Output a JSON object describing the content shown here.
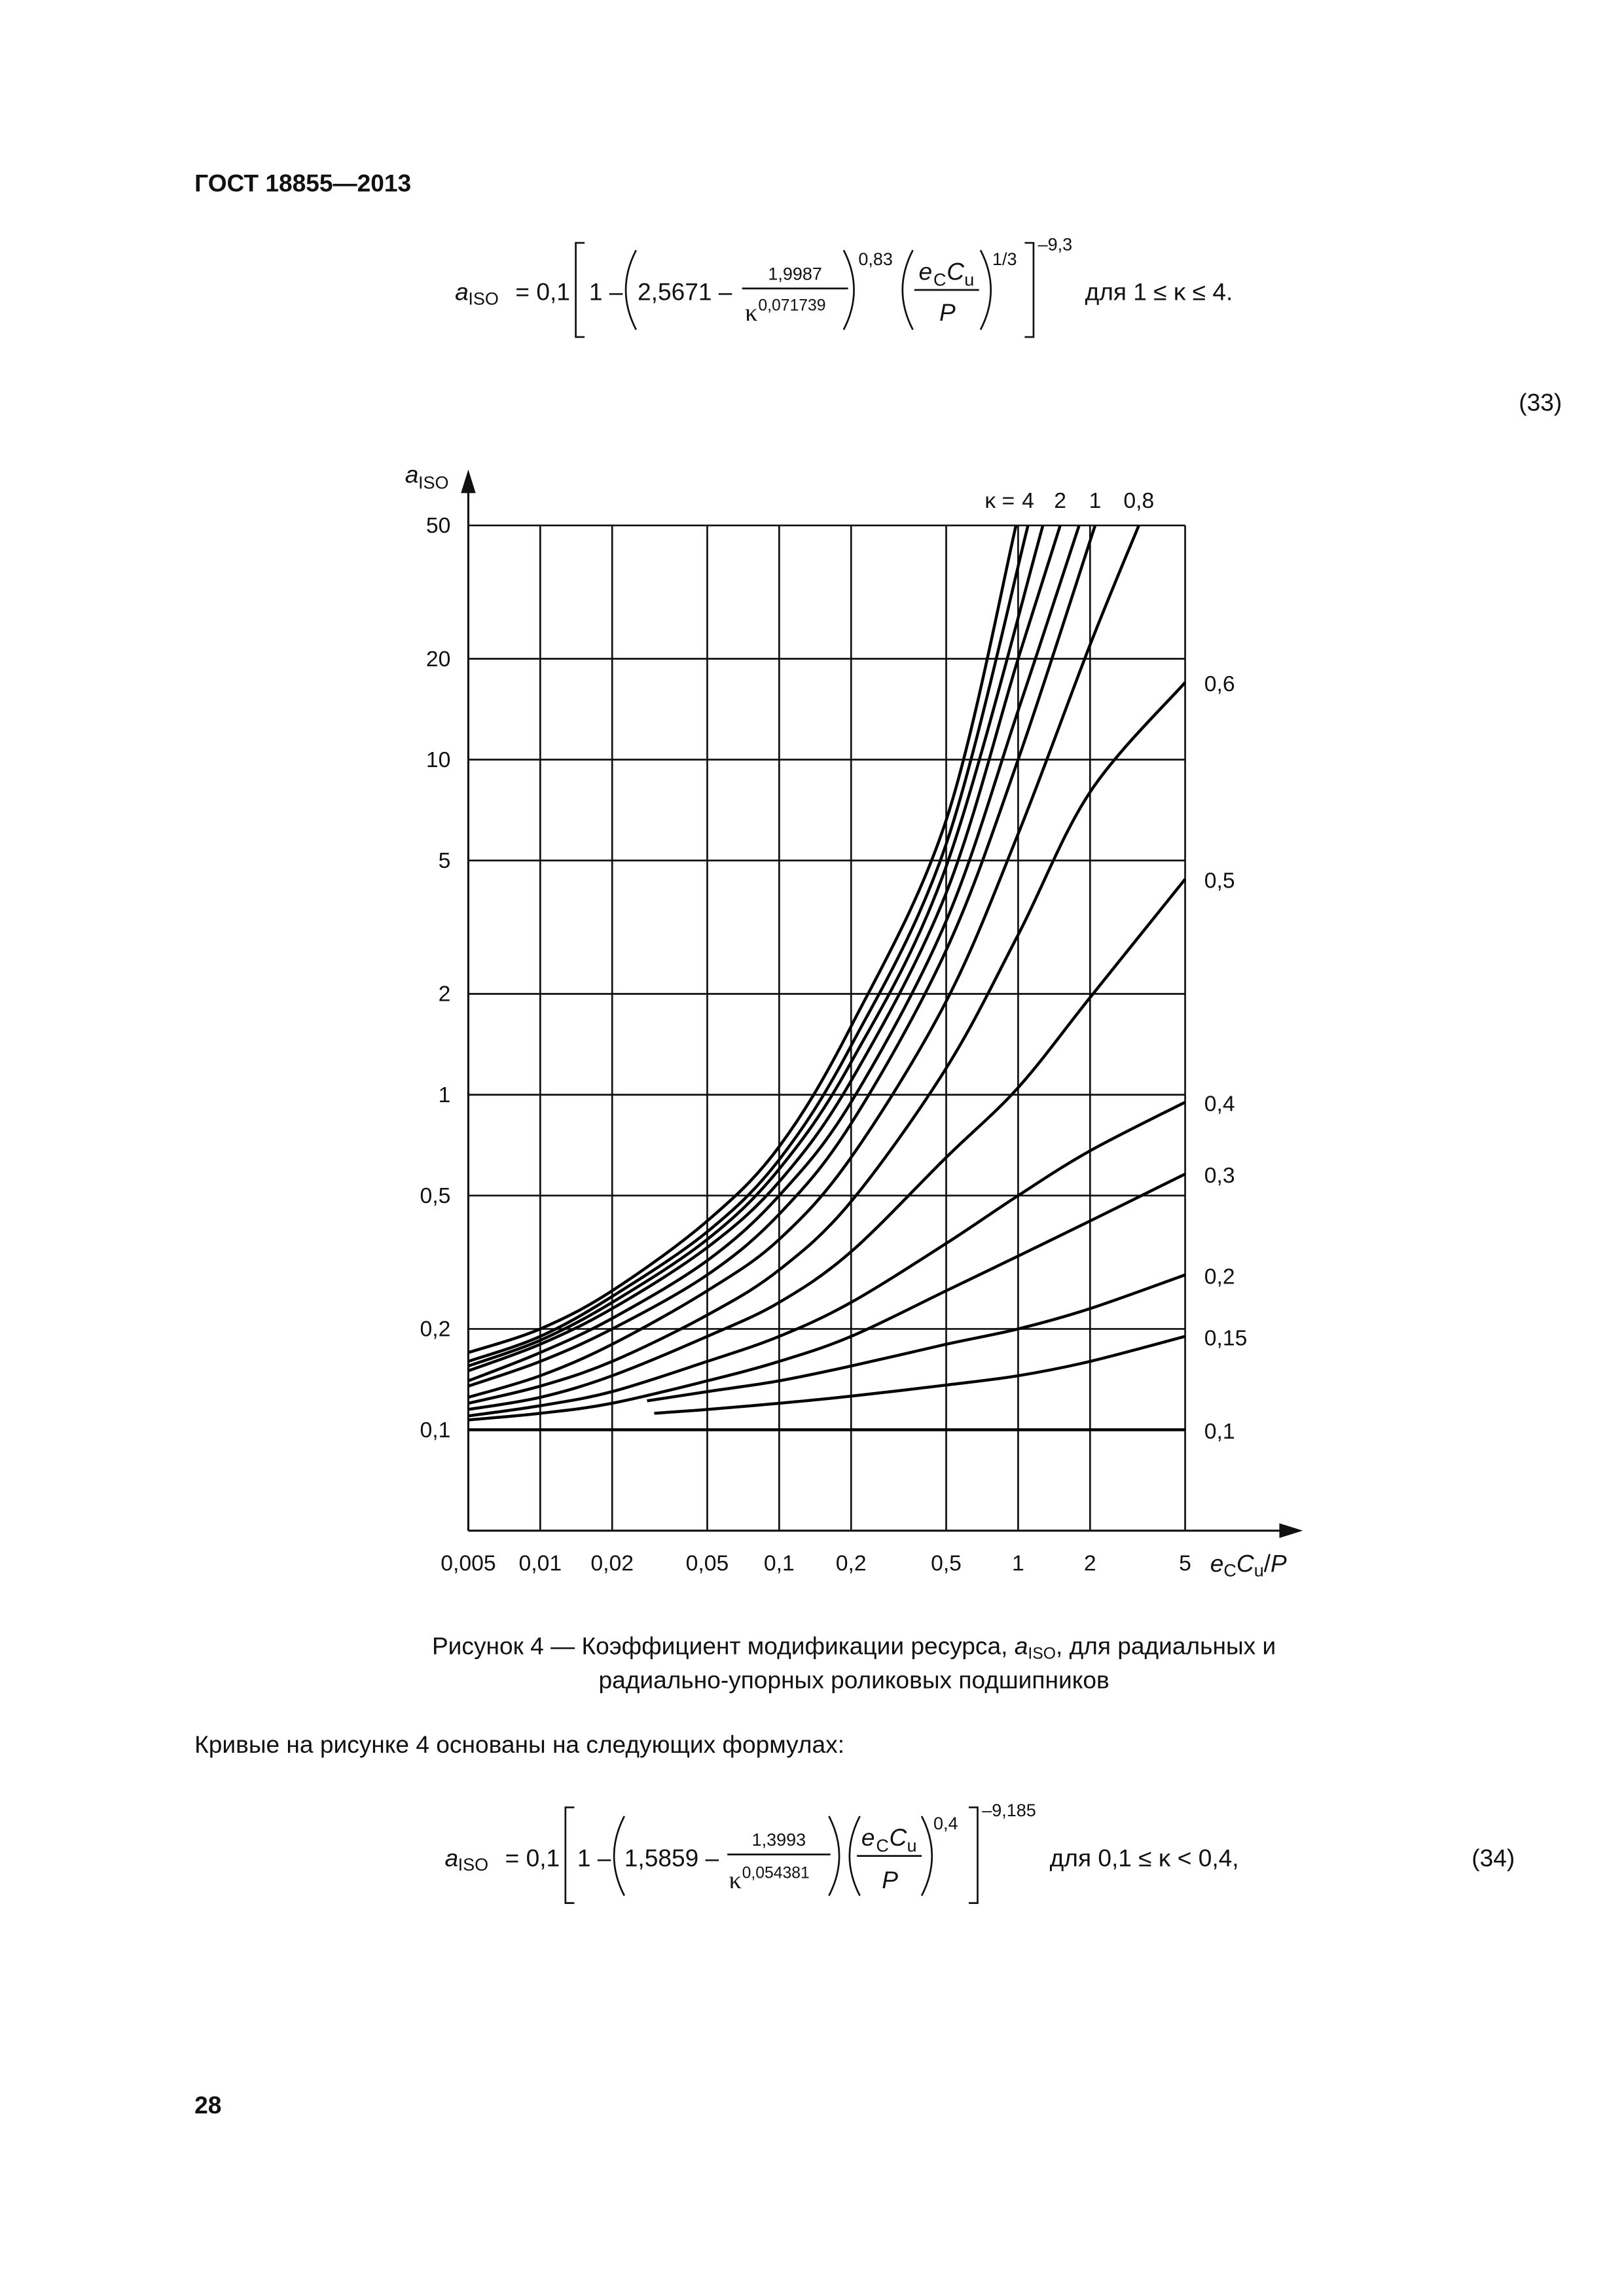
{
  "header": "ГОСТ 18855—2013",
  "formula_33": {
    "a": "a",
    "iso": "ISO",
    "eq": "= 0,1",
    "one": "1 –",
    "c1": "2,5671 –",
    "num": "1,9987",
    "kappa": "κ",
    "kexp": "0,071739",
    "exp1": "0,83",
    "e": "e",
    "e_sub": "C",
    "C": "C",
    "C_sub": "u",
    "P": "P",
    "exp2": "1/3",
    "exp3": "–9,3",
    "cond": "для  1 ≤ κ ≤ 4.",
    "number": "(33)"
  },
  "chart_data": {
    "type": "line",
    "ylabel": {
      "a": "a",
      "sub": "ISO"
    },
    "xlabel": {
      "e": "e",
      "e_sub": "C",
      "C": "C",
      "C_sub": "u",
      "slash": "/",
      "P": "P"
    },
    "kappa_label": "κ =",
    "xlog": true,
    "ylog": true,
    "grid": true,
    "xlim": [
      0.005,
      5
    ],
    "ylim": [
      0.05,
      50
    ],
    "xticks": [
      {
        "value": 0.005,
        "label": "0,005"
      },
      {
        "value": 0.01,
        "label": "0,01"
      },
      {
        "value": 0.02,
        "label": "0,02"
      },
      {
        "value": 0.05,
        "label": "0,05"
      },
      {
        "value": 0.1,
        "label": "0,1"
      },
      {
        "value": 0.2,
        "label": "0,2"
      },
      {
        "value": 0.5,
        "label": "0,5"
      },
      1,
      2,
      5
    ],
    "yticks": [
      {
        "value": 0.1,
        "label": "0,1"
      },
      {
        "value": 0.2,
        "label": "0,2"
      },
      {
        "value": 0.5,
        "label": "0,5"
      },
      1,
      2,
      5,
      10,
      20,
      50
    ],
    "series": [
      {
        "color": "#000000",
        "x": [
          0.005,
          0.01,
          0.02,
          0.05,
          0.1,
          0.2,
          0.5,
          0.98
        ],
        "values": [
          0.17,
          0.2,
          0.26,
          0.42,
          0.7,
          1.6,
          6.6,
          50
        ]
      },
      {
        "name": "4",
        "color": "#000000",
        "x": [
          0.005,
          0.01,
          0.02,
          0.05,
          0.1,
          0.2,
          0.5,
          1.1
        ],
        "values": [
          0.16,
          0.19,
          0.25,
          0.39,
          0.64,
          1.4,
          5.6,
          50
        ]
      },
      {
        "color": "#000000",
        "x": [
          0.005,
          0.01,
          0.02,
          0.05,
          0.1,
          0.2,
          0.5,
          1.27
        ],
        "values": [
          0.155,
          0.185,
          0.24,
          0.37,
          0.6,
          1.25,
          4.8,
          50
        ]
      },
      {
        "name": "2",
        "color": "#000000",
        "x": [
          0.005,
          0.01,
          0.02,
          0.05,
          0.1,
          0.2,
          0.5,
          1,
          1.5
        ],
        "values": [
          0.15,
          0.18,
          0.23,
          0.35,
          0.55,
          1.1,
          4.0,
          20,
          50
        ]
      },
      {
        "color": "#000000",
        "x": [
          0.005,
          0.01,
          0.02,
          0.05,
          0.1,
          0.2,
          0.5,
          1,
          1.8
        ],
        "values": [
          0.14,
          0.17,
          0.215,
          0.32,
          0.5,
          0.95,
          3.3,
          14,
          50
        ]
      },
      {
        "name": "1",
        "color": "#000000",
        "x": [
          0.005,
          0.01,
          0.02,
          0.05,
          0.1,
          0.2,
          0.5,
          1,
          2.1
        ],
        "values": [
          0.135,
          0.16,
          0.2,
          0.29,
          0.44,
          0.82,
          2.7,
          10,
          50
        ]
      },
      {
        "name": "0,8",
        "color": "#000000",
        "x": [
          0.005,
          0.01,
          0.02,
          0.05,
          0.1,
          0.2,
          0.5,
          1,
          2,
          3.2
        ],
        "values": [
          0.125,
          0.145,
          0.18,
          0.26,
          0.37,
          0.65,
          1.9,
          6,
          22,
          50
        ]
      },
      {
        "name": "0,6",
        "color": "#000000",
        "x": [
          0.005,
          0.01,
          0.02,
          0.05,
          0.1,
          0.2,
          0.5,
          1,
          2,
          5
        ],
        "values": [
          0.12,
          0.135,
          0.16,
          0.22,
          0.3,
          0.48,
          1.2,
          3,
          8,
          17
        ]
      },
      {
        "name": "0,5",
        "color": "#000000",
        "x": [
          0.005,
          0.01,
          0.02,
          0.05,
          0.1,
          0.2,
          0.5,
          1,
          2,
          5
        ],
        "values": [
          0.115,
          0.125,
          0.145,
          0.19,
          0.24,
          0.34,
          0.65,
          1.05,
          1.95,
          4.4
        ]
      },
      {
        "name": "0,4",
        "color": "#000000",
        "x": [
          0.005,
          0.01,
          0.02,
          0.05,
          0.1,
          0.2,
          0.5,
          1,
          2,
          5
        ],
        "values": [
          0.11,
          0.118,
          0.13,
          0.16,
          0.19,
          0.24,
          0.36,
          0.5,
          0.68,
          0.95
        ]
      },
      {
        "name": "0,3",
        "color": "#000000",
        "x": [
          0.005,
          0.01,
          0.02,
          0.05,
          0.1,
          0.2,
          0.5,
          1,
          2,
          5
        ],
        "values": [
          0.107,
          0.112,
          0.12,
          0.14,
          0.16,
          0.19,
          0.26,
          0.33,
          0.42,
          0.58
        ]
      },
      {
        "name": "0,2",
        "color": "#000000",
        "x": [
          0.028,
          0.05,
          0.1,
          0.2,
          0.5,
          1,
          2,
          5
        ],
        "values": [
          0.122,
          0.13,
          0.14,
          0.155,
          0.18,
          0.2,
          0.23,
          0.29
        ]
      },
      {
        "name": "0,15",
        "color": "#000000",
        "x": [
          0.03,
          0.05,
          0.1,
          0.2,
          0.5,
          1,
          2,
          5
        ],
        "values": [
          0.112,
          0.115,
          0.12,
          0.126,
          0.136,
          0.145,
          0.16,
          0.19
        ]
      },
      {
        "name": "0,1",
        "color": "#000000",
        "x": [
          0.005,
          5
        ],
        "values": [
          0.1,
          0.1
        ]
      }
    ]
  },
  "caption": {
    "line1_a": "Рисунок 4 — Коэффициент модификации ресурса, ",
    "a": "a",
    "iso": "ISO",
    "line1_b": ", для радиальных и",
    "line2": "радиально-упорных роликовых подшипников"
  },
  "paragraph": "Кривые на рисунке 4 основаны на следующих формулах:",
  "formula_34": {
    "a": "a",
    "iso": "ISO",
    "eq": "= 0,1",
    "one": "1 –",
    "c1": "1,5859 –",
    "num": "1,3993",
    "kappa": "κ",
    "kexp": "0,054381",
    "exp1": "0,4",
    "e": "e",
    "e_sub": "C",
    "C": "C",
    "C_sub": "u",
    "P": "P",
    "exp3": "–9,185",
    "cond": "для  0,1 ≤ κ < 0,4,",
    "number": "(34)"
  },
  "page_number": "28"
}
